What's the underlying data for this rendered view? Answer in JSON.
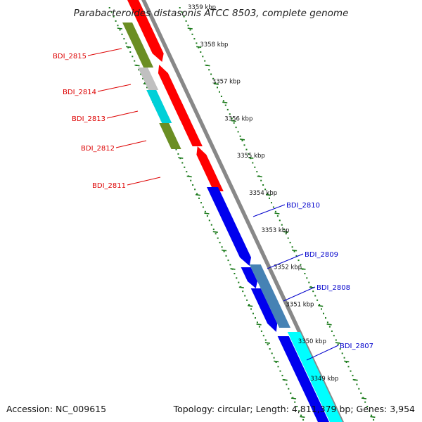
{
  "title": "Parabacteroides distasonis ATCC 8503, complete genome",
  "footer": {
    "accession": "Accession: NC_009615",
    "summary": "Topology: circular; Length: 4,811,379 bp; Genes: 3,954"
  },
  "colors": {
    "reverse_label": "#dd0000",
    "forward_label": "#0000cc",
    "backbone": "#888888",
    "tick": "#1a7a1a",
    "red": "#ff0000",
    "olive": "#6b8e23",
    "silver": "#c0c0c0",
    "cyan": "#00d0d8",
    "blue": "#0000ee",
    "steel": "#4682b4",
    "aqua": "#00ffff"
  },
  "kbp_marks": [
    {
      "label": "3359 kbp"
    },
    {
      "label": "3358 kbp"
    },
    {
      "label": "3357 kbp"
    },
    {
      "label": "3356 kbp"
    },
    {
      "label": "3355 kbp"
    },
    {
      "label": "3354 kbp"
    },
    {
      "label": "3353 kbp"
    },
    {
      "label": "3352 kbp"
    },
    {
      "label": "3351 kbp"
    },
    {
      "label": "3350 kbp"
    },
    {
      "label": "3349 kbp"
    }
  ],
  "reverse_genes": [
    {
      "label": "BDI_2815"
    },
    {
      "label": "BDI_2814"
    },
    {
      "label": "BDI_2813"
    },
    {
      "label": "BDI_2812"
    },
    {
      "label": "BDI_2811"
    }
  ],
  "forward_genes": [
    {
      "label": "BDI_2810"
    },
    {
      "label": "BDI_2809"
    },
    {
      "label": "BDI_2808"
    },
    {
      "label": "BDI_2807"
    }
  ]
}
